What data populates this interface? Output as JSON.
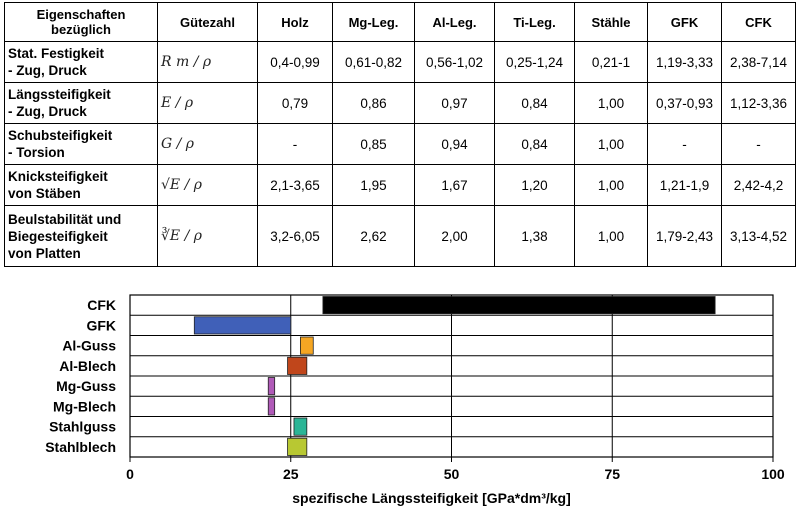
{
  "table": {
    "header_property": "Eigenschaften bezüglich",
    "header_index": "Gütezahl",
    "materials": [
      "Holz",
      "Mg-Leg.",
      "Al-Leg.",
      "Ti-Leg.",
      "Stähle",
      "GFK",
      "CFK"
    ],
    "rows": [
      {
        "property_lines": [
          "Stat. Festigkeit",
          "- Zug, Druck"
        ],
        "formula": "R m / ρ",
        "values": [
          "0,4-0,99",
          "0,61-0,82",
          "0,56-1,02",
          "0,25-1,24",
          "0,21-1",
          "1,19-3,33",
          "2,38-7,14"
        ]
      },
      {
        "property_lines": [
          "Längssteifigkeit",
          "- Zug, Druck"
        ],
        "formula": "E / ρ",
        "values": [
          "0,79",
          "0,86",
          "0,97",
          "0,84",
          "1,00",
          "0,37-0,93",
          "1,12-3,36"
        ]
      },
      {
        "property_lines": [
          "Schubsteifigkeit",
          "- Torsion"
        ],
        "formula": "G / ρ",
        "values": [
          "-",
          "0,85",
          "0,94",
          "0,84",
          "1,00",
          "-",
          "-"
        ]
      },
      {
        "property_lines": [
          "Knicksteifigkeit",
          "von Stäben"
        ],
        "formula": "√E / ρ",
        "values": [
          "2,1-3,65",
          "1,95",
          "1,67",
          "1,20",
          "1,00",
          "1,21-1,9",
          "2,42-4,2"
        ]
      },
      {
        "property_lines": [
          "Beulstabilität und",
          "Biegesteifigkeit",
          "von Platten"
        ],
        "formula": "∛E / ρ",
        "values": [
          "3,2-6,05",
          "2,62",
          "2,00",
          "1,38",
          "1,00",
          "1,79-2,43",
          "3,13-4,52"
        ]
      }
    ]
  },
  "chart_data": {
    "type": "bar",
    "orientation": "horizontal",
    "xlabel": "spezifische Längssteifigkeit [GPa*dm³/kg]",
    "ylabel": "",
    "xlim": [
      0,
      100
    ],
    "xticks": [
      0,
      25,
      50,
      75,
      100
    ],
    "grid": true,
    "categories": [
      "CFK",
      "GFK",
      "Al-Guss",
      "Al-Blech",
      "Mg-Guss",
      "Mg-Blech",
      "Stahlguss",
      "Stahlblech"
    ],
    "ranges": [
      {
        "category": "CFK",
        "min": 30,
        "max": 91,
        "color": "#000000"
      },
      {
        "category": "GFK",
        "min": 10,
        "max": 25,
        "color": "#4060b8"
      },
      {
        "category": "Al-Guss",
        "min": 26.5,
        "max": 28.5,
        "color": "#f5a623"
      },
      {
        "category": "Al-Blech",
        "min": 24.5,
        "max": 27.5,
        "color": "#c0461b"
      },
      {
        "category": "Mg-Guss",
        "min": 21.5,
        "max": 22.5,
        "color": "#b05ab8"
      },
      {
        "category": "Mg-Blech",
        "min": 21.5,
        "max": 22.5,
        "color": "#b05ab8"
      },
      {
        "category": "Stahlguss",
        "min": 25.5,
        "max": 27.5,
        "color": "#2ab596"
      },
      {
        "category": "Stahlblech",
        "min": 24.5,
        "max": 27.5,
        "color": "#b8c832"
      }
    ]
  }
}
